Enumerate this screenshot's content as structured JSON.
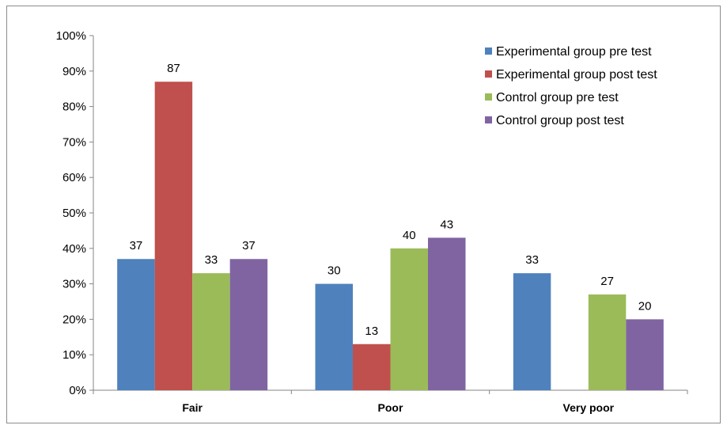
{
  "chart_data": {
    "type": "bar",
    "categories": [
      "Fair",
      "Poor",
      "Very poor"
    ],
    "series": [
      {
        "name": "Experimental group pre test",
        "values": [
          37,
          30,
          33
        ],
        "labels": [
          "37",
          "30",
          "33"
        ],
        "color": "#4F81BD"
      },
      {
        "name": "Experimental group post test",
        "values": [
          87,
          13,
          null
        ],
        "labels": [
          "87",
          "13",
          ""
        ],
        "color": "#C0504D"
      },
      {
        "name": "Control group pre test",
        "values": [
          33,
          40,
          27
        ],
        "labels": [
          "33",
          "40",
          "27"
        ],
        "color": "#9BBB59"
      },
      {
        "name": "Control group post test",
        "values": [
          37,
          43,
          20
        ],
        "labels": [
          "37",
          "43",
          "20"
        ],
        "color": "#8064A2"
      }
    ],
    "y_ticks": [
      "0%",
      "10%",
      "20%",
      "30%",
      "40%",
      "50%",
      "60%",
      "70%",
      "80%",
      "90%",
      "100%"
    ],
    "ylim": [
      0,
      100
    ],
    "title": "",
    "xlabel": "",
    "ylabel": "",
    "grid": false,
    "legend_position": "top-right"
  }
}
